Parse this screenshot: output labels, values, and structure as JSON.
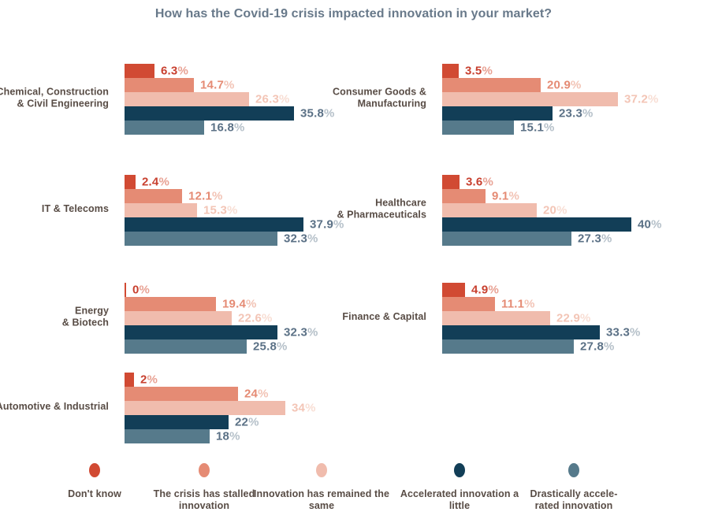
{
  "title": "How has the Covid-19 crisis impacted innovation in your market?",
  "colors": {
    "background": "#ffffff",
    "title_text": "#68798a",
    "category_text": "#584c45",
    "legend_text": "#584c45",
    "blue_value_text": "#5b7186",
    "blue_value_pct": "#b5c0c9"
  },
  "chart_data": {
    "type": "bar",
    "orientation": "horizontal-grouped",
    "title": "How has the Covid-19 crisis impacted innovation in your market?",
    "unit": "%",
    "xlim": [
      0,
      40
    ],
    "grid": false,
    "legend_position": "bottom",
    "categories": [
      "Chemical, Construction & Civil Engineering",
      "Consumer Goods & Manufacturing",
      "IT & Telecoms",
      "Healthcare & Pharmaceuticals",
      "Energy & Biotech",
      "Finance & Capital",
      "Automotive & Industrial"
    ],
    "category_display": [
      "Chemical, Construction\n& Civil Engineering",
      "Consumer Goods &\nManufacturing",
      "IT & Telecoms",
      "Healthcare\n& Pharmaceuticals",
      "Energy\n& Biotech",
      "Finance & Capital",
      "Automotive & Industrial"
    ],
    "series": [
      {
        "name": "Don't know",
        "color": "#d14a33",
        "value_color": "#c8402f",
        "pct_color": "#e8a193",
        "values": [
          6.3,
          3.5,
          2.4,
          3.6,
          0,
          4.9,
          2
        ]
      },
      {
        "name": "The crisis has stalled innovation",
        "color": "#e58b74",
        "value_color": "#e58b74",
        "pct_color": "#f2c3b5",
        "values": [
          14.7,
          20.9,
          12.1,
          9.1,
          19.4,
          11.1,
          24
        ]
      },
      {
        "name": "Innovation has remained the same",
        "color": "#f0bcad",
        "value_color": "#f3c5b6",
        "pct_color": "#f8ded4",
        "values": [
          26.3,
          37.2,
          15.3,
          20,
          22.6,
          22.9,
          34
        ]
      },
      {
        "name": "Accelerated innovation a little",
        "color": "#123e57",
        "value_color": "#5b7186",
        "pct_color": "#b5c0c9",
        "values": [
          35.8,
          23.3,
          37.9,
          40,
          32.3,
          33.3,
          22
        ]
      },
      {
        "name": "Drastically accelerated innovation",
        "color": "#567a8b",
        "value_color": "#5b7186",
        "pct_color": "#b5c0c9",
        "values": [
          16.8,
          15.1,
          32.3,
          27.3,
          25.8,
          27.8,
          18
        ]
      }
    ],
    "value_labels": [
      [
        "6.3%",
        "14.7%",
        "26.3%",
        "35.8%",
        "16.8%"
      ],
      [
        "3.5%",
        "20.9%",
        "37.2%",
        "23.3%",
        "15.1%"
      ],
      [
        "2.4%",
        "12.1%",
        "15.3%",
        "37.9%",
        "32.3%"
      ],
      [
        "3.6%",
        "9.1%",
        "20%",
        "40%",
        "27.3%"
      ],
      [
        "0%",
        "19.4%",
        "22.6%",
        "32.3%",
        "25.8%"
      ],
      [
        "4.9%",
        "11.1%",
        "22.9%",
        "33.3%",
        "27.8%"
      ],
      [
        "2%",
        "24%",
        "34%",
        "22%",
        "18%"
      ]
    ]
  },
  "legend": {
    "items": [
      {
        "label": "Don't know",
        "display": "Don't know",
        "color": "#d14a33"
      },
      {
        "label": "The crisis has stalled innovation",
        "display": "The crisis has stalled\ninnovation",
        "color": "#e58b74"
      },
      {
        "label": "Innovation has remained the same",
        "display": "Innovation has remained the\nsame",
        "color": "#f0bcad"
      },
      {
        "label": "Accelerated innovation a little",
        "display": "Accelerated innovation a little",
        "color": "#123e57"
      },
      {
        "label": "Drastically accelerated innovation",
        "display": "Drastically accele-\nrated innovation",
        "color": "#567a8b"
      }
    ]
  }
}
